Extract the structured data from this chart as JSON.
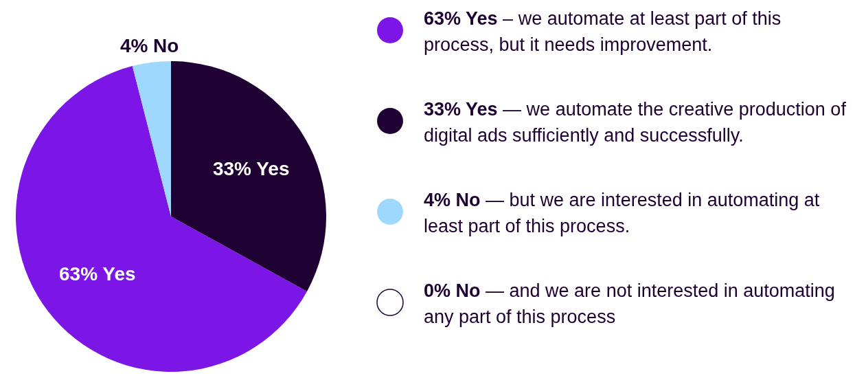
{
  "chart_data": {
    "type": "pie",
    "categories": [
      "63% Yes – we automate at least part of this process, but it needs improvement.",
      "33% Yes — we automate the creative production of digital ads sufficiently and successfully.",
      "4% No — but we are interested in automating at least part of this process.",
      "0% No — and we are not interested in automating any part of this process"
    ],
    "values": [
      63,
      33,
      4,
      0
    ],
    "colors": [
      "#7b16e6",
      "#1f0033",
      "#9fd8ff",
      "#ffffff"
    ],
    "value_labels": [
      "63% Yes",
      "33% Yes",
      "4% No",
      null
    ],
    "legend": "right"
  }
}
